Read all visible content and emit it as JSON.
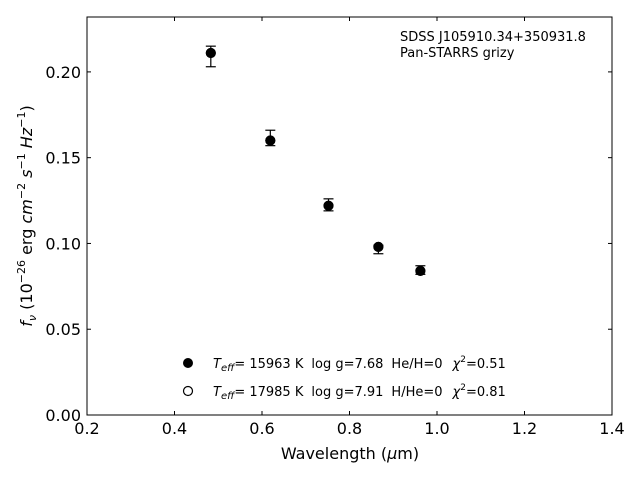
{
  "chart_data": {
    "type": "scatter",
    "title": "",
    "annotation": [
      "SDSS J105910.34+350931.8",
      "Pan-STARRS grizy"
    ],
    "xlabel": "Wavelength (μm)",
    "ylabel": "f_ν (10^-26 erg cm^-2 s^-1 Hz^-1)",
    "xlim": [
      0.2,
      1.4
    ],
    "ylim": [
      0.0,
      0.232
    ],
    "xticks": [
      0.2,
      0.4,
      0.6,
      0.8,
      1.0,
      1.2,
      1.4
    ],
    "yticks": [
      0.0,
      0.05,
      0.1,
      0.15,
      0.2
    ],
    "xtick_labels": [
      "0.2",
      "0.4",
      "0.6",
      "0.8",
      "1.0",
      "1.2",
      "1.4"
    ],
    "ytick_labels": [
      "0.00",
      "0.05",
      "0.10",
      "0.15",
      "0.20"
    ],
    "legend_position": "lower-center",
    "series": [
      {
        "name": "Teff= 15963 K  log g=7.68  He/H=0  χ²=0.51",
        "marker": "filled-circle",
        "color": "#000000",
        "points": [
          {
            "x": 0.483,
            "y": 0.211,
            "ylo": 0.203,
            "yhi": 0.215
          },
          {
            "x": 0.619,
            "y": 0.16,
            "ylo": 0.157,
            "yhi": 0.166
          },
          {
            "x": 0.752,
            "y": 0.122,
            "ylo": 0.119,
            "yhi": 0.126
          },
          {
            "x": 0.866,
            "y": 0.098,
            "ylo": 0.094,
            "yhi": 0.099
          },
          {
            "x": 0.962,
            "y": 0.084,
            "ylo": 0.082,
            "yhi": 0.087
          }
        ]
      },
      {
        "name": "Teff= 17985 K  log g=7.91  H/He=0  χ²=0.81",
        "marker": "open-circle",
        "color": "#000000",
        "points": [
          {
            "x": 0.483,
            "y": 0.211
          },
          {
            "x": 0.619,
            "y": 0.16
          },
          {
            "x": 0.752,
            "y": 0.122
          },
          {
            "x": 0.866,
            "y": 0.098
          },
          {
            "x": 0.962,
            "y": 0.084
          }
        ]
      }
    ],
    "legend": [
      {
        "teff_label": "T",
        "teff_sub": "eff",
        "teff_value": "= 15963 K",
        "logg": "log g=7.68",
        "comp": "He/H=0",
        "chi_sym": "χ",
        "chi_sup": "2",
        "chi_value": "=0.51"
      },
      {
        "teff_label": "T",
        "teff_sub": "eff",
        "teff_value": "= 17985 K",
        "logg": "log g=7.91",
        "comp": "H/He=0",
        "chi_sym": "χ",
        "chi_sup": "2",
        "chi_value": "=0.81"
      }
    ],
    "xlabel_parts": {
      "pre": "Wavelength (",
      "mu": "μ",
      "post": "m)"
    },
    "ylabel_parts": {
      "f": "f",
      "nu": "ν",
      "open": " (10",
      "exp1": "−26",
      "erg": " erg ",
      "cm": "cm",
      "exp2": "−2",
      "s": " s",
      "exp3": "−1",
      "hz": " Hz",
      "exp4": "−1",
      "close": ")"
    }
  }
}
